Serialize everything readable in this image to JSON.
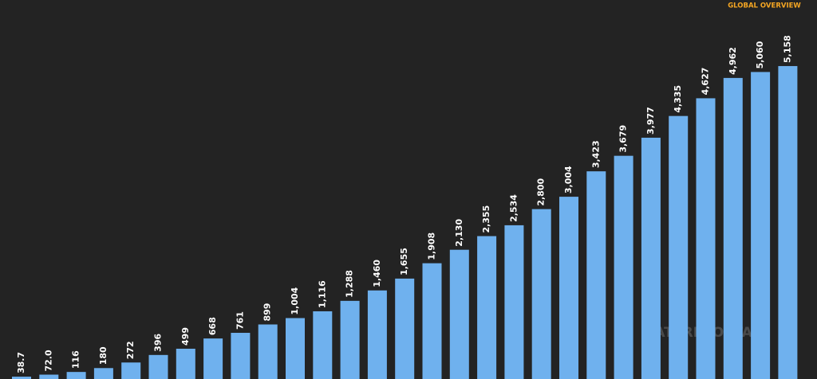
{
  "header": {
    "title": "GLOBAL OVERVIEW"
  },
  "watermark": "DATAREPORTAL",
  "chart_data": {
    "type": "bar",
    "values": [
      38.7,
      72,
      116,
      180,
      272,
      396,
      499,
      668,
      761,
      899,
      1004,
      1116,
      1288,
      1460,
      1655,
      1908,
      2130,
      2355,
      2534,
      2800,
      3004,
      3423,
      3679,
      3977,
      4335,
      4627,
      4962,
      5060,
      5158
    ],
    "value_labels": [
      "38.7",
      "72.0",
      "116",
      "180",
      "272",
      "396",
      "499",
      "668",
      "761",
      "899",
      "1,004",
      "1,116",
      "1,288",
      "1,460",
      "1,655",
      "1,908",
      "2,130",
      "2,355",
      "2,534",
      "2,800",
      "3,004",
      "3,423",
      "3,679",
      "3,977",
      "4,335",
      "4,627",
      "4,962",
      "5,060",
      "5,158"
    ],
    "color": "#6fb1ee"
  }
}
